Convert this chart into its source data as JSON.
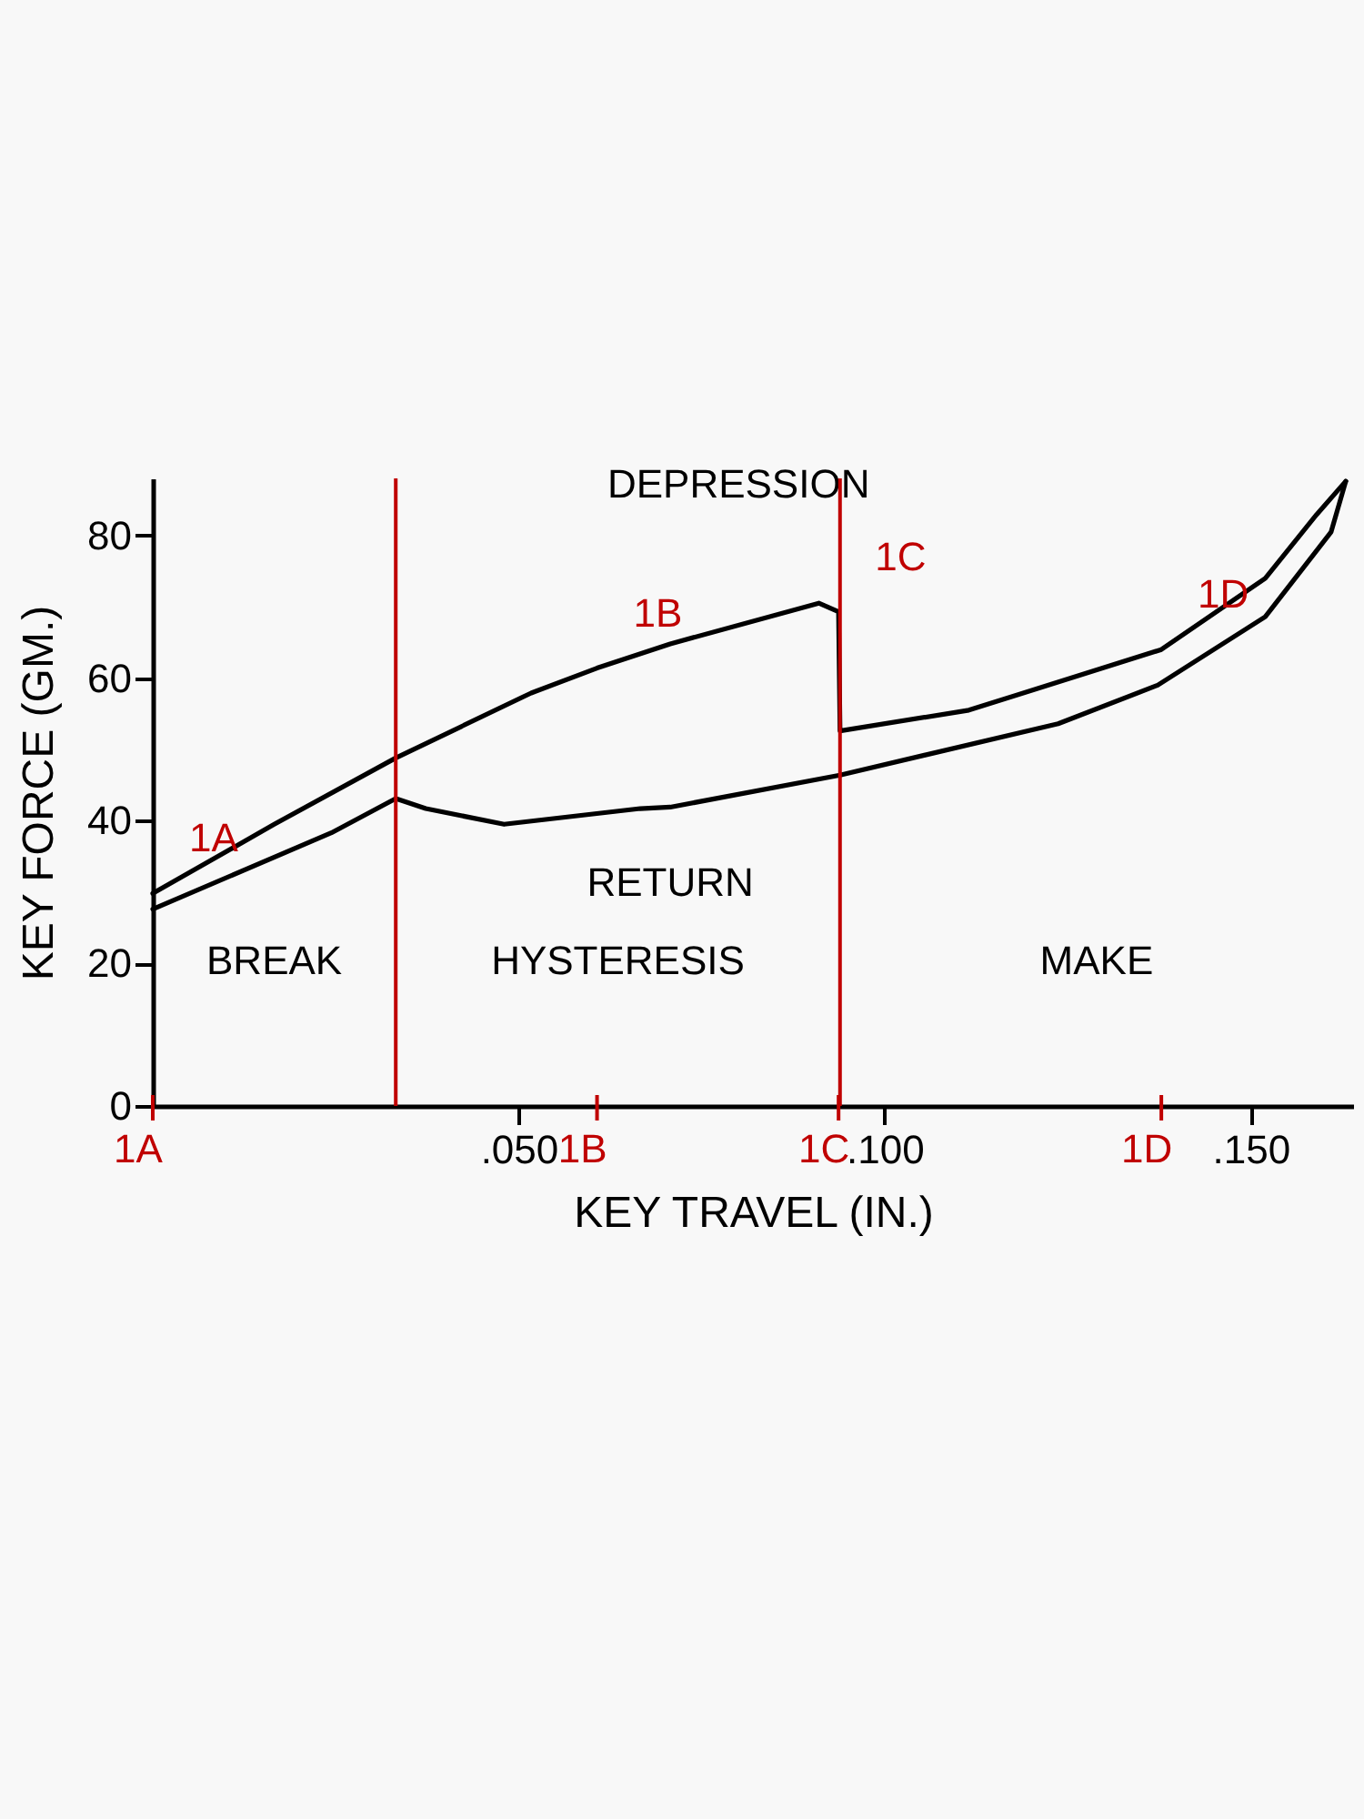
{
  "chart_data": {
    "type": "line",
    "xlabel": "KEY TRAVEL (IN.)",
    "ylabel": "KEY FORCE (GM.)",
    "series": [
      {
        "name": "DEPRESSION",
        "color": "#000000",
        "x": [
          0,
          0.0166,
          0.0332,
          0.0517,
          0.0607,
          0.0707,
          0.091,
          0.0937,
          0.0939,
          0.1115,
          0.1378,
          0.152,
          0.159,
          0.163
        ],
        "values": [
          29.8,
          39.5,
          48.8,
          57.9,
          61.4,
          64.8,
          70.5,
          69.3,
          52.6,
          55.5,
          64,
          74,
          82.9,
          87.6
        ]
      },
      {
        "name": "RETURN",
        "color": "#000000",
        "x": [
          0.163,
          0.161,
          0.152,
          0.1373,
          0.1237,
          0.0939,
          0.0707,
          0.0666,
          0.048,
          0.0373,
          0.0332,
          0.0244,
          0
        ],
        "values": [
          87.6,
          80.5,
          68.6,
          59,
          53.6,
          46.4,
          41.9,
          41.7,
          39.5,
          41.7,
          43.1,
          38.3,
          27.6
        ]
      }
    ],
    "xlim": [
      0,
      0.164
    ],
    "ylim": [
      0,
      88
    ],
    "xticks": [
      {
        "value": 0.05,
        "label": ".050"
      },
      {
        "value": 0.1,
        "label": ".100"
      },
      {
        "value": 0.15,
        "label": ".150"
      }
    ],
    "yticks": [
      0,
      20,
      40,
      60,
      80
    ],
    "ref_lines": [
      {
        "axis": "x",
        "value": 0.0332,
        "color": "#c00000"
      },
      {
        "axis": "x",
        "value": 0.0939,
        "color": "#c00000"
      }
    ],
    "annotations": [
      {
        "text": "1A",
        "x": 0,
        "y": 29.8
      },
      {
        "text": "1B",
        "x": 0.0607,
        "y": 61.4
      },
      {
        "text": "1C",
        "x": 0.0937,
        "y": 69.3
      },
      {
        "text": "1D",
        "x": 0.1378,
        "y": 64
      },
      "BREAK",
      "HYSTERESIS",
      "MAKE"
    ],
    "grid": false,
    "legend": false
  }
}
